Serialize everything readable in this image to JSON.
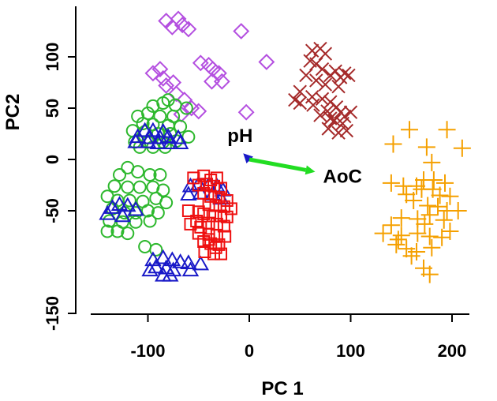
{
  "chart_data": {
    "type": "scatter",
    "title": "",
    "xlabel": "PC 1",
    "ylabel": "PC2",
    "xlim": [
      -165,
      220
    ],
    "ylim": [
      -165,
      150
    ],
    "xticks": [
      -100,
      0,
      100,
      200
    ],
    "xtick_labels": [
      "-100",
      "0",
      "100",
      "200"
    ],
    "yticks": [
      -150,
      -50,
      0,
      50,
      100
    ],
    "ytick_labels": [
      "-150",
      "-50",
      "0",
      "50",
      "100"
    ],
    "grid": false,
    "legend": "none",
    "series": [
      {
        "marker": "diamond",
        "color": "#b44fe0",
        "points": [
          [
            -82,
            135
          ],
          [
            -70,
            137
          ],
          [
            -76,
            129
          ],
          [
            -60,
            127
          ],
          [
            -66,
            131
          ],
          [
            -8,
            125
          ],
          [
            -88,
            88
          ],
          [
            -95,
            84
          ],
          [
            -85,
            79
          ],
          [
            -75,
            75
          ],
          [
            -48,
            94
          ],
          [
            -40,
            92
          ],
          [
            -36,
            88
          ],
          [
            -30,
            84
          ],
          [
            -37,
            76
          ],
          [
            -27,
            76
          ],
          [
            -82,
            72
          ],
          [
            -72,
            64
          ],
          [
            -64,
            58
          ],
          [
            -57,
            50
          ],
          [
            -67,
            44
          ],
          [
            -50,
            47
          ],
          [
            -3,
            46
          ],
          [
            17,
            95
          ]
        ]
      },
      {
        "marker": "x",
        "color": "#a52a2a",
        "points": [
          [
            70,
            108
          ],
          [
            62,
            106
          ],
          [
            75,
            103
          ],
          [
            60,
            96
          ],
          [
            66,
            93
          ],
          [
            72,
            88
          ],
          [
            85,
            86
          ],
          [
            94,
            84
          ],
          [
            80,
            82
          ],
          [
            90,
            80
          ],
          [
            98,
            82
          ],
          [
            56,
            82
          ],
          [
            66,
            77
          ],
          [
            75,
            73
          ],
          [
            88,
            71
          ],
          [
            50,
            66
          ],
          [
            62,
            61
          ],
          [
            72,
            59
          ],
          [
            80,
            56
          ],
          [
            86,
            51
          ],
          [
            77,
            47
          ],
          [
            90,
            46
          ],
          [
            50,
            55
          ],
          [
            45,
            58
          ],
          [
            63,
            53
          ],
          [
            84,
            38
          ],
          [
            94,
            42
          ],
          [
            100,
            46
          ],
          [
            78,
            30
          ],
          [
            88,
            26
          ],
          [
            96,
            28
          ],
          [
            80,
            40
          ],
          [
            70,
            43
          ],
          [
            92,
            35
          ]
        ]
      },
      {
        "marker": "circle",
        "color": "#2db82d",
        "points": [
          [
            -85,
            55
          ],
          [
            -80,
            58
          ],
          [
            -73,
            53
          ],
          [
            -95,
            52
          ],
          [
            -62,
            50
          ],
          [
            -100,
            45
          ],
          [
            -110,
            42
          ],
          [
            -88,
            42
          ],
          [
            -75,
            42
          ],
          [
            -105,
            35
          ],
          [
            -95,
            34
          ],
          [
            -80,
            33
          ],
          [
            -68,
            32
          ],
          [
            -115,
            28
          ],
          [
            -103,
            27
          ],
          [
            -90,
            25
          ],
          [
            -78,
            25
          ],
          [
            -113,
            17
          ],
          [
            -100,
            17
          ],
          [
            -85,
            17
          ],
          [
            -72,
            18
          ],
          [
            -60,
            22
          ],
          [
            -108,
            12
          ],
          [
            -95,
            12
          ],
          [
            -83,
            12
          ],
          [
            -120,
            -8
          ],
          [
            -110,
            -12
          ],
          [
            -98,
            -15
          ],
          [
            -88,
            -15
          ],
          [
            -128,
            -15
          ],
          [
            -133,
            -26
          ],
          [
            -120,
            -27
          ],
          [
            -108,
            -27
          ],
          [
            -95,
            -27
          ],
          [
            -85,
            -30
          ],
          [
            -140,
            -36
          ],
          [
            -130,
            -40
          ],
          [
            -118,
            -40
          ],
          [
            -105,
            -41
          ],
          [
            -92,
            -38
          ],
          [
            -82,
            -42
          ],
          [
            -135,
            -48
          ],
          [
            -123,
            -52
          ],
          [
            -112,
            -52
          ],
          [
            -100,
            -50
          ],
          [
            -90,
            -52
          ],
          [
            -138,
            -60
          ],
          [
            -125,
            -61
          ],
          [
            -112,
            -61
          ],
          [
            -130,
            -70
          ],
          [
            -120,
            -72
          ],
          [
            -98,
            -60
          ],
          [
            -140,
            -70
          ],
          [
            -103,
            -85
          ],
          [
            -92,
            -88
          ]
        ]
      },
      {
        "marker": "triangle",
        "color": "#1919c8",
        "points": [
          [
            -103,
            28
          ],
          [
            -95,
            28
          ],
          [
            -85,
            27
          ],
          [
            -110,
            22
          ],
          [
            -98,
            21
          ],
          [
            -88,
            21
          ],
          [
            -80,
            22
          ],
          [
            -70,
            21
          ],
          [
            -112,
            17
          ],
          [
            -100,
            17
          ],
          [
            -90,
            16
          ],
          [
            -78,
            16
          ],
          [
            -68,
            16
          ],
          [
            -58,
            -26
          ],
          [
            -50,
            -24
          ],
          [
            -40,
            -25
          ],
          [
            -32,
            -26
          ],
          [
            -26,
            -30
          ],
          [
            -60,
            -34
          ],
          [
            -48,
            -33
          ],
          [
            -36,
            -34
          ],
          [
            -28,
            -38
          ],
          [
            -135,
            -47
          ],
          [
            -128,
            -44
          ],
          [
            -120,
            -45
          ],
          [
            -112,
            -49
          ],
          [
            -140,
            -53
          ],
          [
            -125,
            -55
          ],
          [
            -95,
            -98
          ],
          [
            -85,
            -96
          ],
          [
            -76,
            -98
          ],
          [
            -68,
            -100
          ],
          [
            -60,
            -101
          ],
          [
            -92,
            -105
          ],
          [
            -82,
            -106
          ],
          [
            -75,
            -108
          ],
          [
            -85,
            -113
          ],
          [
            -78,
            -113
          ],
          [
            -98,
            -108
          ],
          [
            -48,
            -102
          ],
          [
            -58,
            -108
          ]
        ]
      },
      {
        "marker": "square",
        "color": "#ee1111",
        "points": [
          [
            -55,
            -18
          ],
          [
            -45,
            -16
          ],
          [
            -38,
            -20
          ],
          [
            -32,
            -18
          ],
          [
            -50,
            -25
          ],
          [
            -42,
            -24
          ],
          [
            -35,
            -26
          ],
          [
            -28,
            -28
          ],
          [
            -45,
            -33
          ],
          [
            -38,
            -36
          ],
          [
            -30,
            -37
          ],
          [
            -22,
            -40
          ],
          [
            -40,
            -44
          ],
          [
            -33,
            -45
          ],
          [
            -25,
            -46
          ],
          [
            -18,
            -48
          ],
          [
            -45,
            -53
          ],
          [
            -36,
            -55
          ],
          [
            -28,
            -55
          ],
          [
            -22,
            -56
          ],
          [
            -60,
            -50
          ],
          [
            -50,
            -51
          ],
          [
            -52,
            -60
          ],
          [
            -40,
            -62
          ],
          [
            -32,
            -63
          ],
          [
            -25,
            -65
          ],
          [
            -50,
            -72
          ],
          [
            -40,
            -73
          ],
          [
            -32,
            -74
          ],
          [
            -24,
            -75
          ],
          [
            -45,
            -80
          ],
          [
            -38,
            -82
          ],
          [
            -30,
            -83
          ],
          [
            -44,
            -90
          ],
          [
            -35,
            -92
          ],
          [
            -28,
            -92
          ],
          [
            -58,
            -63
          ],
          [
            -48,
            -66
          ],
          [
            -40,
            -78
          ],
          [
            -33,
            -86
          ]
        ]
      },
      {
        "marker": "plus",
        "color": "#f5a000",
        "points": [
          [
            158,
            29
          ],
          [
            195,
            29
          ],
          [
            175,
            12
          ],
          [
            142,
            15
          ],
          [
            210,
            11
          ],
          [
            180,
            -3
          ],
          [
            140,
            -23
          ],
          [
            152,
            -26
          ],
          [
            165,
            -26
          ],
          [
            172,
            -20
          ],
          [
            182,
            -20
          ],
          [
            193,
            -23
          ],
          [
            155,
            -34
          ],
          [
            170,
            -29
          ],
          [
            181,
            -29
          ],
          [
            188,
            -35
          ],
          [
            198,
            -36
          ],
          [
            162,
            -40
          ],
          [
            176,
            -45
          ],
          [
            186,
            -46
          ],
          [
            195,
            -50
          ],
          [
            206,
            -50
          ],
          [
            178,
            -54
          ],
          [
            192,
            -59
          ],
          [
            166,
            -58
          ],
          [
            150,
            -57
          ],
          [
            173,
            -63
          ],
          [
            140,
            -64
          ],
          [
            132,
            -72
          ],
          [
            150,
            -74
          ],
          [
            166,
            -72
          ],
          [
            178,
            -75
          ],
          [
            190,
            -76
          ],
          [
            145,
            -83
          ],
          [
            155,
            -87
          ],
          [
            165,
            -90
          ],
          [
            180,
            -86
          ],
          [
            160,
            -94
          ],
          [
            172,
            -106
          ],
          [
            178,
            -112
          ],
          [
            147,
            -78
          ],
          [
            198,
            -70
          ]
        ]
      }
    ],
    "arrows": [
      {
        "label": "pH",
        "to": [
          -6,
          6
        ],
        "color": "#1919c8"
      },
      {
        "label": "AoC",
        "to": [
          65,
          -12
        ],
        "color": "#22dd22"
      }
    ]
  }
}
